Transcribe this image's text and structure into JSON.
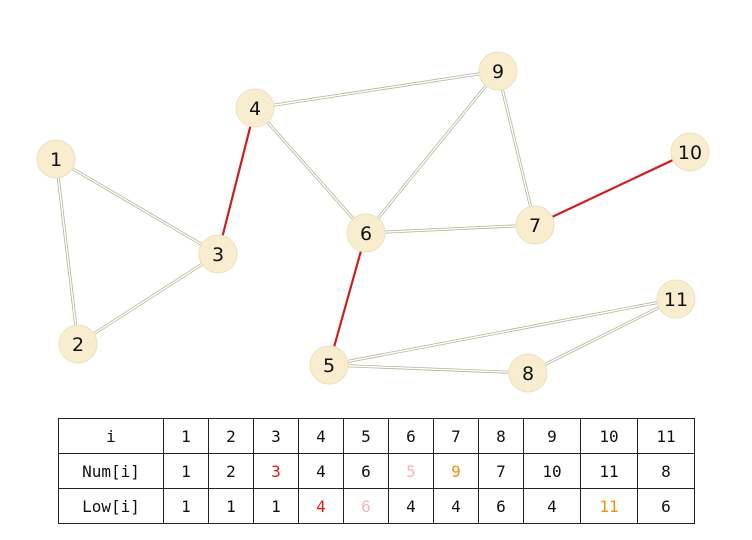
{
  "graph": {
    "nodes": [
      {
        "id": "1",
        "label": "1"
      },
      {
        "id": "2",
        "label": "2"
      },
      {
        "id": "3",
        "label": "3"
      },
      {
        "id": "4",
        "label": "4"
      },
      {
        "id": "5",
        "label": "5"
      },
      {
        "id": "6",
        "label": "6"
      },
      {
        "id": "7",
        "label": "7"
      },
      {
        "id": "8",
        "label": "8"
      },
      {
        "id": "9",
        "label": "9"
      },
      {
        "id": "10",
        "label": "10"
      },
      {
        "id": "11",
        "label": "11"
      }
    ],
    "edges": [
      {
        "from": "1",
        "to": "2",
        "bridge": false
      },
      {
        "from": "1",
        "to": "3",
        "bridge": false
      },
      {
        "from": "2",
        "to": "3",
        "bridge": false
      },
      {
        "from": "3",
        "to": "4",
        "bridge": true
      },
      {
        "from": "4",
        "to": "9",
        "bridge": false
      },
      {
        "from": "4",
        "to": "6",
        "bridge": false
      },
      {
        "from": "9",
        "to": "6",
        "bridge": false
      },
      {
        "from": "9",
        "to": "7",
        "bridge": false
      },
      {
        "from": "6",
        "to": "7",
        "bridge": false
      },
      {
        "from": "7",
        "to": "10",
        "bridge": true
      },
      {
        "from": "6",
        "to": "5",
        "bridge": true
      },
      {
        "from": "5",
        "to": "11",
        "bridge": false
      },
      {
        "from": "5",
        "to": "8",
        "bridge": false
      },
      {
        "from": "8",
        "to": "11",
        "bridge": false
      }
    ],
    "colors": {
      "node_fill": "#f8edcf",
      "edge": "#b9b39a",
      "bridge_edge": "#cc1f1f"
    }
  },
  "table": {
    "rows": [
      {
        "header": "i",
        "cells": [
          {
            "value": "1"
          },
          {
            "value": "2"
          },
          {
            "value": "3"
          },
          {
            "value": "4"
          },
          {
            "value": "5"
          },
          {
            "value": "6"
          },
          {
            "value": "7"
          },
          {
            "value": "8"
          },
          {
            "value": "9"
          },
          {
            "value": "10"
          },
          {
            "value": "11"
          }
        ]
      },
      {
        "header": "Num[i]",
        "cells": [
          {
            "value": "1"
          },
          {
            "value": "2"
          },
          {
            "value": "3",
            "color": "red"
          },
          {
            "value": "4"
          },
          {
            "value": "6"
          },
          {
            "value": "5",
            "color": "pink"
          },
          {
            "value": "9",
            "color": "orange"
          },
          {
            "value": "7"
          },
          {
            "value": "10"
          },
          {
            "value": "11"
          },
          {
            "value": "8"
          }
        ]
      },
      {
        "header": "Low[i]",
        "cells": [
          {
            "value": "1"
          },
          {
            "value": "1"
          },
          {
            "value": "1"
          },
          {
            "value": "4",
            "color": "red"
          },
          {
            "value": "6",
            "color": "pink"
          },
          {
            "value": "4"
          },
          {
            "value": "4"
          },
          {
            "value": "6"
          },
          {
            "value": "4"
          },
          {
            "value": "11",
            "color": "orange"
          },
          {
            "value": "6"
          }
        ]
      }
    ],
    "highlight_colors": {
      "red": "#e01a1a",
      "orange": "#f0900c",
      "pink": "#f4b6bc"
    }
  }
}
